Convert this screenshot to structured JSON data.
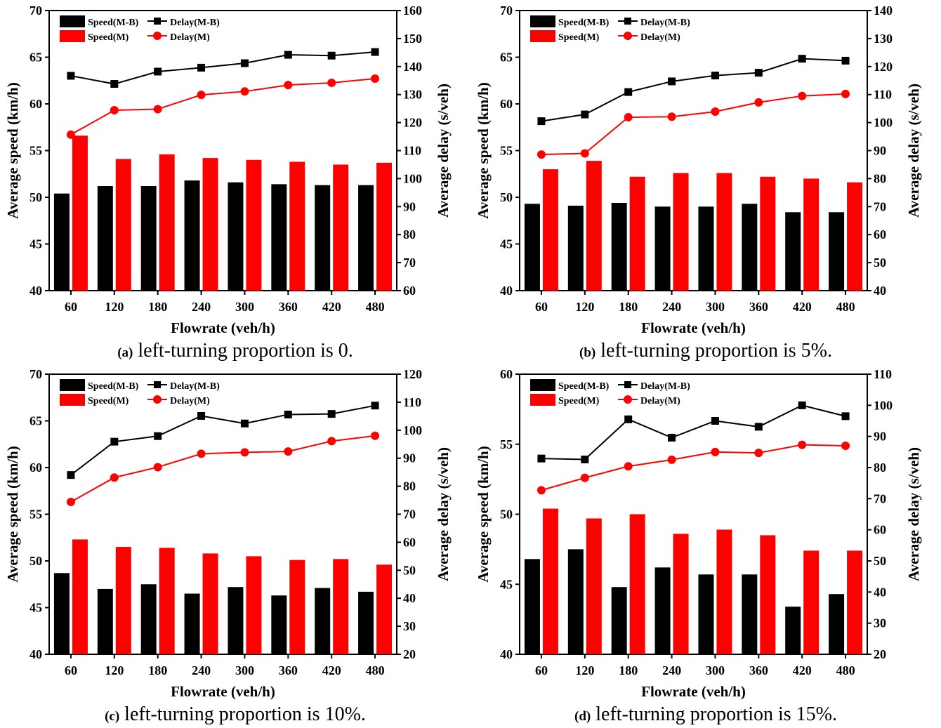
{
  "chart_data": [
    {
      "type": "bar",
      "caption_tag": "(a)",
      "caption_text": " left-turning proportion is 0.",
      "categories": [
        "60",
        "120",
        "180",
        "240",
        "300",
        "360",
        "420",
        "480"
      ],
      "xlabel": "Flowrate (veh/h)",
      "ylabel": "Average speed (km/h)",
      "y2label": "Average delay (s/veh)",
      "ylim": [
        40,
        70
      ],
      "yticks": [
        40,
        45,
        50,
        55,
        60,
        65,
        70
      ],
      "y2lim": [
        60,
        160
      ],
      "y2ticks": [
        60,
        70,
        80,
        90,
        100,
        110,
        120,
        130,
        140,
        150,
        160
      ],
      "series": [
        {
          "name": "Speed(M-B)",
          "kind": "bar",
          "axis": "left",
          "color": "#000000",
          "values": [
            50.4,
            51.2,
            51.2,
            51.8,
            51.6,
            51.4,
            51.3,
            51.3
          ]
        },
        {
          "name": "Speed(M)",
          "kind": "bar",
          "axis": "left",
          "color": "#ff0000",
          "values": [
            56.6,
            54.1,
            54.6,
            54.2,
            54.0,
            53.8,
            53.5,
            53.7
          ]
        },
        {
          "name": "Delay(M-B)",
          "kind": "line",
          "axis": "right",
          "color": "#000000",
          "marker": "square",
          "values": [
            136.7,
            133.8,
            138.2,
            139.6,
            141.2,
            144.2,
            143.9,
            145.2
          ]
        },
        {
          "name": "Delay(M)",
          "kind": "line",
          "axis": "right",
          "color": "#ff0000",
          "marker": "circle",
          "values": [
            115.7,
            124.4,
            124.8,
            129.9,
            131.1,
            133.4,
            134.2,
            135.7
          ]
        }
      ]
    },
    {
      "type": "bar",
      "caption_tag": "(b)",
      "caption_text": " left-turning proportion is 5%.",
      "categories": [
        "60",
        "120",
        "180",
        "240",
        "300",
        "360",
        "420",
        "480"
      ],
      "xlabel": "Flowrate (veh/h)",
      "ylabel": "Average speed (km/h)",
      "y2label": "Average delay (s/veh)",
      "ylim": [
        40,
        70
      ],
      "yticks": [
        40,
        45,
        50,
        55,
        60,
        65,
        70
      ],
      "y2lim": [
        40,
        140
      ],
      "y2ticks": [
        40,
        50,
        60,
        70,
        80,
        90,
        100,
        110,
        120,
        130,
        140
      ],
      "series": [
        {
          "name": "Speed(M-B)",
          "kind": "bar",
          "axis": "left",
          "color": "#000000",
          "values": [
            49.3,
            49.1,
            49.4,
            49.0,
            49.0,
            49.3,
            48.4,
            48.4
          ]
        },
        {
          "name": "Speed(M)",
          "kind": "bar",
          "axis": "left",
          "color": "#ff0000",
          "values": [
            53.0,
            53.9,
            52.2,
            52.6,
            52.6,
            52.2,
            52.0,
            51.6
          ]
        },
        {
          "name": "Delay(M-B)",
          "kind": "line",
          "axis": "right",
          "color": "#000000",
          "marker": "square",
          "values": [
            100.5,
            102.9,
            110.9,
            114.7,
            116.8,
            117.8,
            122.8,
            122.1
          ]
        },
        {
          "name": "Delay(M)",
          "kind": "line",
          "axis": "right",
          "color": "#ff0000",
          "marker": "circle",
          "values": [
            88.6,
            89.0,
            101.9,
            102.1,
            103.9,
            107.2,
            109.5,
            110.2
          ]
        }
      ]
    },
    {
      "type": "bar",
      "caption_tag": "(c)",
      "caption_text": " left-turning proportion is 10%.",
      "categories": [
        "60",
        "120",
        "180",
        "240",
        "300",
        "360",
        "420",
        "480"
      ],
      "xlabel": "Flowrate (veh/h)",
      "ylabel": "Average speed (km/h)",
      "y2label": "Average delay (s/veh)",
      "ylim": [
        40,
        70
      ],
      "yticks": [
        40,
        45,
        50,
        55,
        60,
        65,
        70
      ],
      "y2lim": [
        20,
        120
      ],
      "y2ticks": [
        20,
        30,
        40,
        50,
        60,
        70,
        80,
        90,
        100,
        110,
        120
      ],
      "series": [
        {
          "name": "Speed(M-B)",
          "kind": "bar",
          "axis": "left",
          "color": "#000000",
          "values": [
            48.7,
            47.0,
            47.5,
            46.5,
            47.2,
            46.3,
            47.1,
            46.7
          ]
        },
        {
          "name": "Speed(M)",
          "kind": "bar",
          "axis": "left",
          "color": "#ff0000",
          "values": [
            52.3,
            51.5,
            51.4,
            50.8,
            50.5,
            50.1,
            50.2,
            49.6
          ]
        },
        {
          "name": "Delay(M-B)",
          "kind": "line",
          "axis": "right",
          "color": "#000000",
          "marker": "square",
          "values": [
            84.0,
            95.9,
            97.9,
            105.1,
            102.4,
            105.6,
            105.8,
            108.8
          ]
        },
        {
          "name": "Delay(M)",
          "kind": "line",
          "axis": "right",
          "color": "#ff0000",
          "marker": "circle",
          "values": [
            74.4,
            83.1,
            86.8,
            91.6,
            92.1,
            92.4,
            96.1,
            98.0
          ]
        }
      ]
    },
    {
      "type": "bar",
      "caption_tag": "(d)",
      "caption_text": "  left-turning proportion is 15%.",
      "categories": [
        "60",
        "120",
        "180",
        "240",
        "300",
        "360",
        "420",
        "480"
      ],
      "xlabel": "Flowrate (veh/h)",
      "ylabel": "Average speed (km/h)",
      "y2label": "Average delay (s/veh)",
      "ylim": [
        40,
        60
      ],
      "yticks": [
        40,
        45,
        50,
        55,
        60
      ],
      "y2lim": [
        20,
        110
      ],
      "y2ticks": [
        20,
        30,
        40,
        50,
        60,
        70,
        80,
        90,
        100,
        110
      ],
      "series": [
        {
          "name": "Speed(M-B)",
          "kind": "bar",
          "axis": "left",
          "color": "#000000",
          "values": [
            46.8,
            47.5,
            44.8,
            46.2,
            45.7,
            45.7,
            43.4,
            44.3
          ]
        },
        {
          "name": "Speed(M)",
          "kind": "bar",
          "axis": "left",
          "color": "#ff0000",
          "values": [
            50.4,
            49.7,
            50.0,
            48.6,
            48.9,
            48.5,
            47.4,
            47.4
          ]
        },
        {
          "name": "Delay(M-B)",
          "kind": "line",
          "axis": "right",
          "color": "#000000",
          "marker": "square",
          "values": [
            82.9,
            82.6,
            95.5,
            89.6,
            95.0,
            93.1,
            100.0,
            96.5
          ]
        },
        {
          "name": "Delay(M)",
          "kind": "line",
          "axis": "right",
          "color": "#ff0000",
          "marker": "circle",
          "values": [
            72.7,
            76.7,
            80.4,
            82.5,
            85.0,
            84.7,
            87.3,
            87.0
          ]
        }
      ]
    }
  ]
}
